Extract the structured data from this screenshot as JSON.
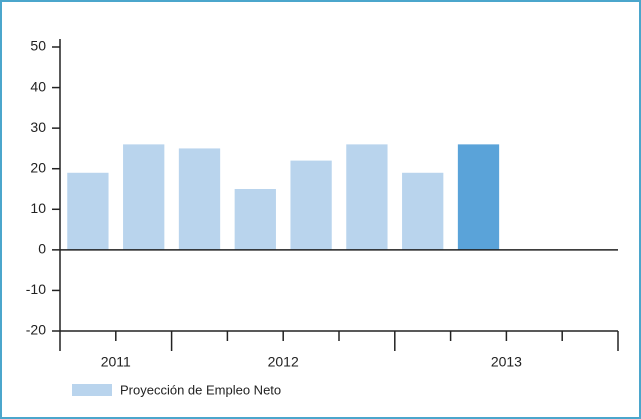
{
  "chart_data": {
    "type": "bar",
    "categories": [
      null,
      null,
      null,
      null,
      null,
      null,
      null,
      null,
      null,
      null
    ],
    "groups": [
      {
        "label": "2011",
        "count": 2
      },
      {
        "label": "2012",
        "count": 4
      },
      {
        "label": "2013",
        "count": 4
      }
    ],
    "series": [
      {
        "name": "Proyección de Empleo Neto",
        "color": "#b9d4ed",
        "values": [
          19,
          26,
          25,
          15,
          22,
          26,
          19,
          26,
          null,
          null
        ],
        "colors": [
          "#b9d4ed",
          "#b9d4ed",
          "#b9d4ed",
          "#b9d4ed",
          "#b9d4ed",
          "#b9d4ed",
          "#b9d4ed",
          "#5aa3d9",
          null,
          null
        ]
      }
    ],
    "ylim": [
      -20,
      50
    ],
    "yticks": [
      -20,
      -10,
      0,
      10,
      20,
      30,
      40,
      50
    ]
  }
}
